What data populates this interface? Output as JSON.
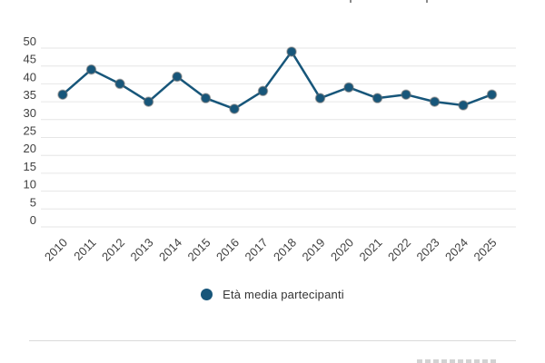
{
  "chart_data": {
    "type": "line",
    "title": "",
    "categories": [
      "2010",
      "2011",
      "2012",
      "2013",
      "2014",
      "2015",
      "2016",
      "2017",
      "2018",
      "2019",
      "2020",
      "2021",
      "2022",
      "2023",
      "2024",
      "2025"
    ],
    "series": [
      {
        "name": "Età media partecipanti",
        "values": [
          37,
          44,
          40,
          35,
          42,
          36,
          33,
          38,
          49,
          36,
          39,
          36,
          37,
          35,
          34,
          37
        ],
        "color": "#17567A"
      }
    ],
    "xlabel": "",
    "ylabel": "",
    "ylim": [
      0,
      50
    ],
    "ytick_step": 5,
    "yticks": [
      50,
      45,
      40,
      35,
      30,
      25,
      20,
      15,
      10,
      5,
      0
    ],
    "grid": "horizontal",
    "x_label_rotation": -45,
    "legend_position": "bottom-center"
  },
  "legend": {
    "label": "Età media partecipanti",
    "marker_color": "#17567A"
  },
  "colors": {
    "line": "#17567A",
    "point_ring": "rgba(110,110,110,0.5)",
    "grid": "#e6e6e6",
    "axis_label": "#404040",
    "legend_text": "#333333",
    "divider": "#d9d9d9"
  }
}
